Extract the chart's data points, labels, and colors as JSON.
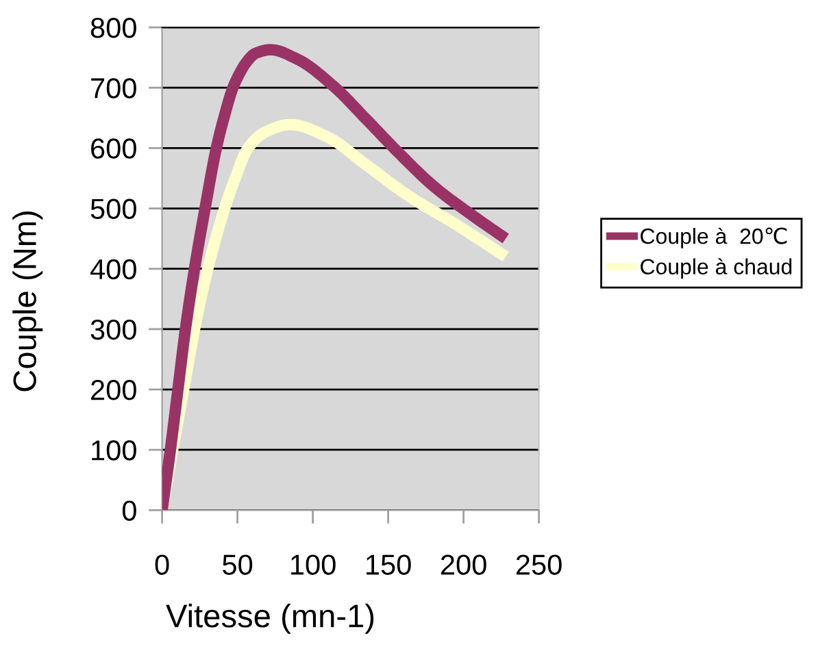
{
  "chart_data": {
    "type": "line",
    "xlabel": "Vitesse (mn-1)",
    "ylabel": "Couple (Nm)",
    "xlim": [
      0,
      250
    ],
    "xticks": [
      0,
      50,
      100,
      150,
      200,
      250
    ],
    "ylim": [
      0,
      800
    ],
    "yticks": [
      0,
      100,
      200,
      300,
      400,
      500,
      600,
      700,
      800
    ],
    "grid": "y",
    "legend": "right",
    "marker": "none",
    "line_style": "solid",
    "series": [
      {
        "name": "Couple à  20℃",
        "color": "#993366",
        "x": [
          0,
          5.5,
          10.5,
          15.5,
          21.5,
          28.5,
          36,
          41,
          47,
          51.5,
          55,
          62,
          72,
          90,
          114,
          135,
          157,
          181,
          205,
          228
        ],
        "values": [
          0,
          100,
          200,
          300,
          400,
          500,
          600,
          650,
          700,
          724,
          739,
          757,
          763,
          747,
          702,
          649,
          592,
          535,
          490,
          450
        ]
      },
      {
        "name": "Couple à chaud",
        "color": "#ffffcc",
        "x": [
          0,
          7,
          14.3,
          21.5,
          30.3,
          41.5,
          48.5,
          57,
          68,
          85,
          110,
          135,
          164,
          194,
          228
        ],
        "values": [
          0,
          100,
          200,
          300,
          400,
          500,
          550,
          600,
          626,
          639,
          618,
          573,
          520,
          475,
          420
        ]
      }
    ]
  }
}
